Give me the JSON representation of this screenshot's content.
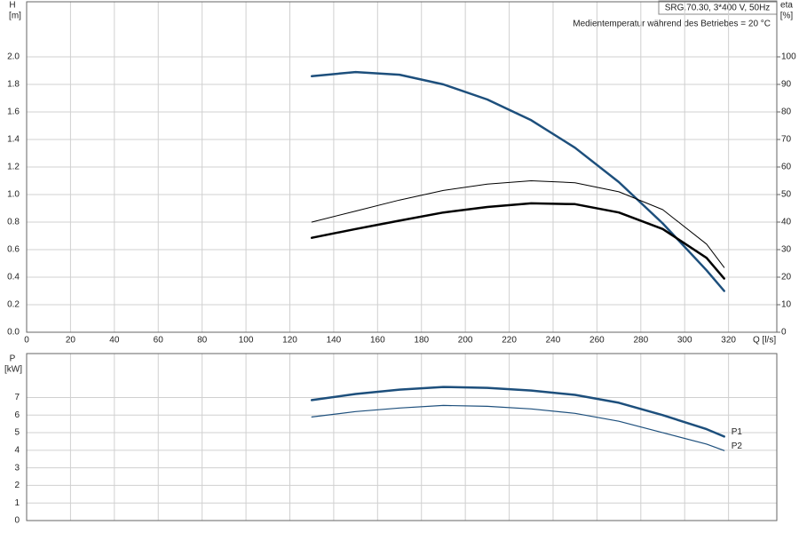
{
  "chart_data": [
    {
      "type": "line",
      "title": "SRG.70.30, 3*400 V, 50Hz",
      "subtitle": "Medientemperatur während des Betriebes = 20 °C",
      "xlabel": "Q [l/s]",
      "ylabel": "H",
      "yunit": "[m]",
      "y2label": "eta",
      "y2unit": "[%]",
      "xlim": [
        0,
        342
      ],
      "xticks": [
        0,
        20,
        40,
        60,
        80,
        100,
        120,
        140,
        160,
        180,
        200,
        220,
        240,
        260,
        280,
        300,
        320
      ],
      "ylim": [
        0,
        2.4
      ],
      "yticks": [
        {
          "value": 0,
          "label": "0.0"
        },
        0.2,
        0.4,
        0.6,
        0.8,
        {
          "value": 1,
          "label": "1.0"
        },
        1.2,
        1.4,
        1.6,
        1.8,
        {
          "value": 2,
          "label": "2.0"
        }
      ],
      "y2lim": [
        0,
        120
      ],
      "y2ticks": [
        0,
        10,
        20,
        30,
        40,
        50,
        60,
        70,
        80,
        90,
        100
      ],
      "grid": true,
      "x": [
        130,
        150,
        170,
        190,
        210,
        230,
        250,
        270,
        290,
        310,
        318
      ],
      "series": [
        {
          "color": "#1d4f7c",
          "linewidth": 2.5,
          "values": [
            1.86,
            1.89,
            1.87,
            1.8,
            1.69,
            1.54,
            1.34,
            1.09,
            0.79,
            0.45,
            0.3
          ]
        },
        {
          "color": "#000000",
          "linewidth": 1,
          "axis": "y2",
          "values": [
            40,
            44,
            48,
            51.5,
            53.8,
            55,
            54.3,
            51,
            44.5,
            32,
            23.5
          ]
        },
        {
          "color": "#000000",
          "linewidth": 2.5,
          "axis": "y2",
          "values": [
            34.3,
            37.5,
            40.5,
            43.5,
            45.5,
            46.8,
            46.5,
            43.5,
            37.5,
            27,
            19.5
          ]
        }
      ]
    },
    {
      "type": "line",
      "ylabel": "P",
      "yunit": "[kW]",
      "xlim": [
        0,
        342
      ],
      "ylim": [
        0,
        9.5
      ],
      "yticks": [
        0,
        1,
        2,
        3,
        4,
        5,
        6,
        7
      ],
      "grid": true,
      "x": [
        130,
        150,
        170,
        190,
        210,
        230,
        250,
        270,
        290,
        310,
        318
      ],
      "series": [
        {
          "name": "P1",
          "color": "#1d4f7c",
          "linewidth": 2.5,
          "values": [
            6.85,
            7.2,
            7.45,
            7.6,
            7.55,
            7.4,
            7.15,
            6.7,
            6.0,
            5.2,
            4.78
          ]
        },
        {
          "name": "P2",
          "color": "#1d4f7c",
          "linewidth": 1.2,
          "values": [
            5.89,
            6.2,
            6.4,
            6.55,
            6.5,
            6.35,
            6.1,
            5.65,
            5.0,
            4.35,
            3.98
          ]
        }
      ]
    }
  ]
}
